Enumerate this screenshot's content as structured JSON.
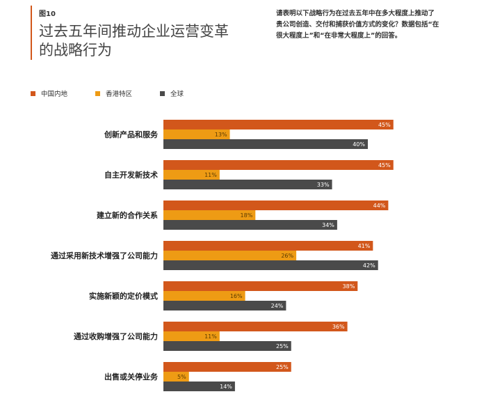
{
  "header": {
    "figure_label": "图10",
    "title_line1": "过去五年间推动企业运营变革",
    "title_line2": "的战略行为",
    "note": "请表明以下战略行为在过去五年中在多大程度上推动了贵公司创造、交付和捕获价值方式的变化？数据包括“在很大程度上”和“在非常大程度上”的回答。"
  },
  "colors": {
    "mainland": "#d2571b",
    "hongkong": "#ee9b14",
    "global": "#4a4a4a",
    "accent": "#d2571b"
  },
  "chart_data": {
    "type": "bar",
    "orientation": "horizontal",
    "categories": [
      "创新产品和服务",
      "自主开发新技术",
      "建立新的合作关系",
      "通过采用新技术增强了公司能力",
      "实施新颖的定价模式",
      "通过收购增强了公司能力",
      "出售或关停业务"
    ],
    "series": [
      {
        "name": "中国内地",
        "values": [
          45,
          45,
          44,
          41,
          38,
          36,
          25
        ]
      },
      {
        "name": "香港特区",
        "values": [
          13,
          11,
          18,
          26,
          16,
          11,
          5
        ]
      },
      {
        "name": "全球",
        "values": [
          40,
          33,
          34,
          42,
          24,
          25,
          14
        ]
      }
    ],
    "value_suffix": "%",
    "xlim": [
      0,
      50
    ],
    "legend_position": "top-left",
    "grid": false
  }
}
